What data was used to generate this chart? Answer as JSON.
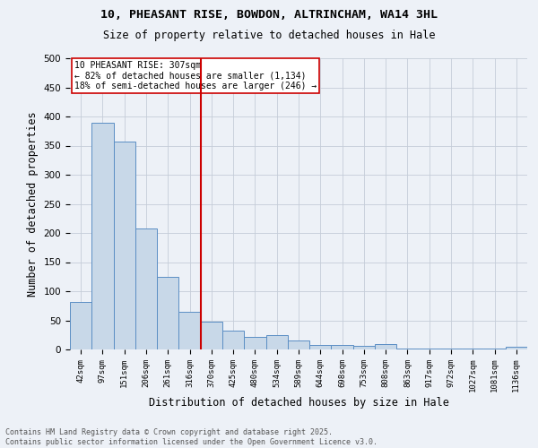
{
  "title1": "10, PHEASANT RISE, BOWDON, ALTRINCHAM, WA14 3HL",
  "title2": "Size of property relative to detached houses in Hale",
  "xlabel": "Distribution of detached houses by size in Hale",
  "ylabel": "Number of detached properties",
  "categories": [
    "42sqm",
    "97sqm",
    "151sqm",
    "206sqm",
    "261sqm",
    "316sqm",
    "370sqm",
    "425sqm",
    "480sqm",
    "534sqm",
    "589sqm",
    "644sqm",
    "698sqm",
    "753sqm",
    "808sqm",
    "863sqm",
    "917sqm",
    "972sqm",
    "1027sqm",
    "1081sqm",
    "1136sqm"
  ],
  "values": [
    82,
    390,
    357,
    208,
    125,
    65,
    47,
    33,
    22,
    24,
    15,
    7,
    8,
    6,
    9,
    2,
    1,
    1,
    1,
    1,
    4
  ],
  "bar_color": "#c8d8e8",
  "bar_edge_color": "#5b8ec4",
  "vline_x_index": 5,
  "vline_color": "#cc0000",
  "annotation_title": "10 PHEASANT RISE: 307sqm",
  "annotation_line1": "← 82% of detached houses are smaller (1,134)",
  "annotation_line2": "18% of semi-detached houses are larger (246) →",
  "annotation_box_color": "#ffffff",
  "annotation_box_edge": "#cc0000",
  "footer1": "Contains HM Land Registry data © Crown copyright and database right 2025.",
  "footer2": "Contains public sector information licensed under the Open Government Licence v3.0.",
  "bg_color": "#edf1f7",
  "grid_color": "#c5cdd8",
  "ylim": [
    0,
    500
  ],
  "yticks": [
    0,
    50,
    100,
    150,
    200,
    250,
    300,
    350,
    400,
    450,
    500
  ]
}
